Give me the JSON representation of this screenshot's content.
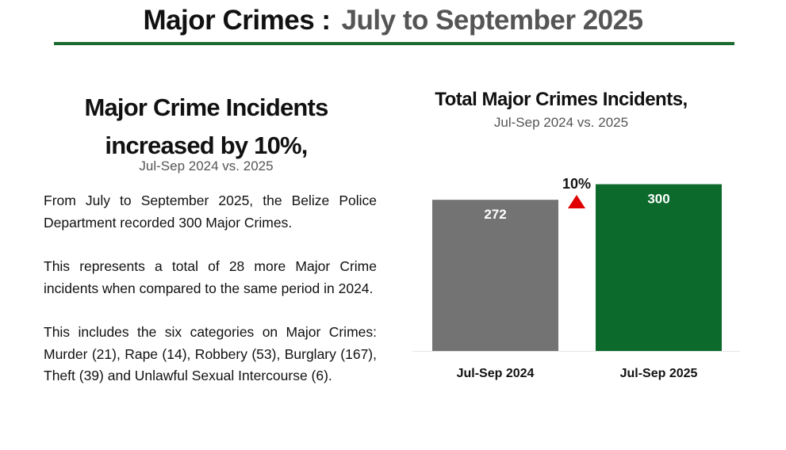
{
  "header": {
    "title_main": "Major Crimes :",
    "title_period": "July to September 2025",
    "rule_color": "#1a6b2f"
  },
  "summary": {
    "headline_line1": "Major Crime Incidents",
    "headline_line2": "increased by 10%,",
    "subtitle": "Jul-Sep 2024 vs. 2025",
    "paragraphs": [
      "From July to September 2025, the Belize Police Department recorded 300 Major Crimes.",
      "This represents a total of 28 more Major Crime incidents when compared to the same period in 2024.",
      "This includes the six categories on Major Crimes: Murder (21), Rape (14), Robbery (53), Burglary (167), Theft (39) and Unlawful Sexual Intercourse (6)."
    ]
  },
  "chart_data": {
    "type": "bar",
    "title": "Total Major Crimes Incidents,",
    "subtitle": "Jul-Sep 2024 vs. 2025",
    "categories": [
      "Jul-Sep 2024",
      "Jul-Sep 2025"
    ],
    "values": [
      272,
      300
    ],
    "data_labels": [
      "272",
      "300"
    ],
    "colors": [
      "#737373",
      "#0b6a2c"
    ],
    "ylim": [
      0,
      325
    ],
    "grid": false,
    "legend": "none",
    "annotation": {
      "text": "10%",
      "direction": "up",
      "color": "#e00000"
    }
  }
}
